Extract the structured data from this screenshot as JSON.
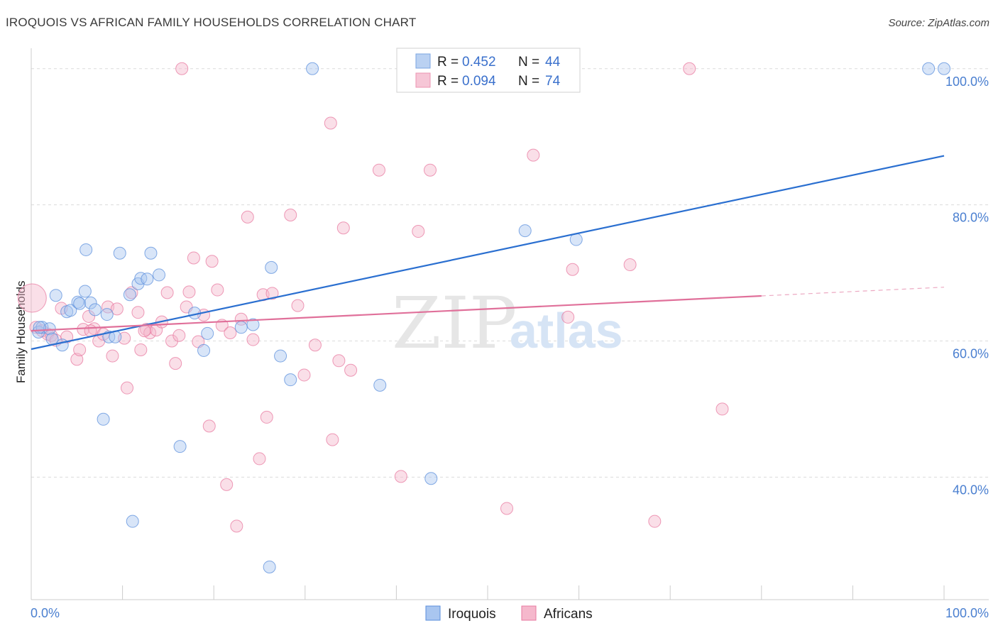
{
  "title": "IROQUOIS VS AFRICAN FAMILY HOUSEHOLDS CORRELATION CHART",
  "source": "Source: ZipAtlas.com",
  "watermark": {
    "zip": "ZIP",
    "atlas": "atlas"
  },
  "colors": {
    "blue": "#5b8fdc",
    "blue_fill": "#a9c6f0",
    "pink": "#e87aa0",
    "pink_fill": "#f5b8cc",
    "blue_line": "#2a6fd0",
    "pink_line": "#e0709a"
  },
  "legend": {
    "r_label": "R =",
    "n_label": "N =",
    "iroquois": {
      "r": "0.452",
      "n": "44"
    },
    "africans": {
      "r": "0.094",
      "n": "74"
    }
  },
  "bottom_legend": {
    "iroquois": "Iroquois",
    "africans": "Africans"
  },
  "chart_data": {
    "type": "scatter",
    "title": "IROQUOIS VS AFRICAN FAMILY HOUSEHOLDS CORRELATION CHART",
    "xlabel": "",
    "ylabel": "Family Households",
    "xlim": [
      0,
      100
    ],
    "ylim": [
      22,
      103
    ],
    "x_tick_labels": [
      "0.0%",
      "100.0%"
    ],
    "y_ticks": [
      40,
      60,
      80,
      100
    ],
    "y_tick_labels": [
      "40.0%",
      "60.0%",
      "80.0%",
      "100.0%"
    ],
    "grid": "horizontal dashed",
    "legend_position": "top-center",
    "series": [
      {
        "name": "Iroquois",
        "color": "#5b8fdc",
        "trend": {
          "x": [
            0,
            100
          ],
          "y": [
            58.8,
            87.2
          ],
          "solid_until": 100
        },
        "points": [
          [
            0.8,
            61.3
          ],
          [
            1.2,
            62.0
          ],
          [
            2.0,
            61.8
          ],
          [
            2.3,
            60.3
          ],
          [
            2.7,
            66.7
          ],
          [
            3.4,
            59.4
          ],
          [
            3.9,
            64.3
          ],
          [
            4.3,
            64.5
          ],
          [
            5.1,
            65.7
          ],
          [
            5.3,
            65.5
          ],
          [
            5.9,
            67.3
          ],
          [
            6.0,
            73.4
          ],
          [
            6.5,
            65.6
          ],
          [
            7.0,
            64.6
          ],
          [
            7.9,
            48.5
          ],
          [
            8.3,
            63.9
          ],
          [
            8.5,
            60.6
          ],
          [
            9.2,
            60.6
          ],
          [
            9.7,
            72.9
          ],
          [
            10.8,
            66.8
          ],
          [
            11.1,
            33.5
          ],
          [
            11.7,
            68.4
          ],
          [
            12.0,
            69.2
          ],
          [
            12.7,
            69.1
          ],
          [
            13.1,
            72.9
          ],
          [
            14.0,
            69.7
          ],
          [
            16.3,
            44.5
          ],
          [
            17.9,
            64.1
          ],
          [
            18.9,
            58.6
          ],
          [
            19.3,
            61.1
          ],
          [
            23.0,
            62.0
          ],
          [
            24.3,
            62.4
          ],
          [
            26.1,
            26.8
          ],
          [
            26.3,
            70.8
          ],
          [
            27.3,
            57.8
          ],
          [
            28.4,
            54.3
          ],
          [
            30.8,
            100.0
          ],
          [
            38.2,
            53.5
          ],
          [
            43.8,
            39.8
          ],
          [
            54.1,
            76.2
          ],
          [
            59.7,
            74.9
          ],
          [
            98.3,
            100.0
          ],
          [
            100.0,
            100.0
          ],
          [
            0.9,
            62.0
          ]
        ]
      },
      {
        "name": "Africans",
        "color": "#e87aa0",
        "trend": {
          "x": [
            0,
            100
          ],
          "y": [
            61.5,
            67.9
          ],
          "solid_until": 80
        },
        "points": [
          [
            0.1,
            66.3
          ],
          [
            0.5,
            62.0
          ],
          [
            1.2,
            61.5
          ],
          [
            1.8,
            61.0
          ],
          [
            2.2,
            60.8
          ],
          [
            2.7,
            60.1
          ],
          [
            3.3,
            64.8
          ],
          [
            3.9,
            60.6
          ],
          [
            5.0,
            57.3
          ],
          [
            5.3,
            58.7
          ],
          [
            5.7,
            61.7
          ],
          [
            6.3,
            63.6
          ],
          [
            6.9,
            61.8
          ],
          [
            7.4,
            60.0
          ],
          [
            7.9,
            61.0
          ],
          [
            8.4,
            65.0
          ],
          [
            8.9,
            57.8
          ],
          [
            9.4,
            64.7
          ],
          [
            10.2,
            60.4
          ],
          [
            10.5,
            53.1
          ],
          [
            11.0,
            67.1
          ],
          [
            11.7,
            64.2
          ],
          [
            12.0,
            58.7
          ],
          [
            12.6,
            61.7
          ],
          [
            13.0,
            61.2
          ],
          [
            13.7,
            61.6
          ],
          [
            14.3,
            62.8
          ],
          [
            14.9,
            67.1
          ],
          [
            15.4,
            60.0
          ],
          [
            15.8,
            56.7
          ],
          [
            16.2,
            60.8
          ],
          [
            16.5,
            100.0
          ],
          [
            17.0,
            65.0
          ],
          [
            17.3,
            67.2
          ],
          [
            17.8,
            72.2
          ],
          [
            18.3,
            59.9
          ],
          [
            18.9,
            63.8
          ],
          [
            19.5,
            47.5
          ],
          [
            19.8,
            71.7
          ],
          [
            20.4,
            67.5
          ],
          [
            20.9,
            62.3
          ],
          [
            21.4,
            38.9
          ],
          [
            21.8,
            61.2
          ],
          [
            22.5,
            32.8
          ],
          [
            23.0,
            63.2
          ],
          [
            23.7,
            78.2
          ],
          [
            24.3,
            60.2
          ],
          [
            25.0,
            42.7
          ],
          [
            25.4,
            66.8
          ],
          [
            25.8,
            48.8
          ],
          [
            26.4,
            67.0
          ],
          [
            28.4,
            78.5
          ],
          [
            29.2,
            65.2
          ],
          [
            29.9,
            55.0
          ],
          [
            31.1,
            59.4
          ],
          [
            32.8,
            92.0
          ],
          [
            33.0,
            45.5
          ],
          [
            33.7,
            57.1
          ],
          [
            34.2,
            76.6
          ],
          [
            35.0,
            55.7
          ],
          [
            38.1,
            85.1
          ],
          [
            40.5,
            40.1
          ],
          [
            42.4,
            76.1
          ],
          [
            43.7,
            85.1
          ],
          [
            52.1,
            35.4
          ],
          [
            55.0,
            87.3
          ],
          [
            58.8,
            63.5
          ],
          [
            59.3,
            70.5
          ],
          [
            65.6,
            71.2
          ],
          [
            68.3,
            33.5
          ],
          [
            72.1,
            100.0
          ],
          [
            75.7,
            50.0
          ],
          [
            6.5,
            61.5
          ],
          [
            12.4,
            61.5
          ]
        ]
      }
    ]
  }
}
